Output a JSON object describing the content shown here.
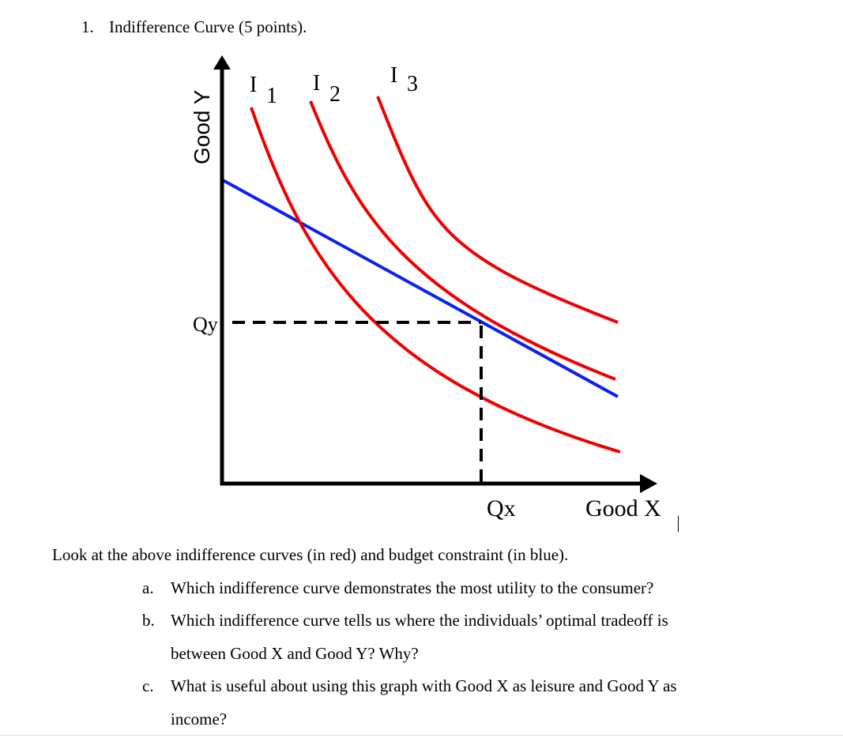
{
  "question": {
    "number": "1.",
    "title": "Indifference Curve (5 points)."
  },
  "figure": {
    "y_axis_label": "Good Y",
    "x_axis_label": "Good X",
    "qy_label": "Qy",
    "qx_label": "Qx",
    "curves": [
      {
        "letter": "I",
        "subscript": "1"
      },
      {
        "letter": "I",
        "subscript": "2"
      },
      {
        "letter": "I",
        "subscript": "3"
      }
    ],
    "colors": {
      "indifference_curve": "#ee0000",
      "budget_constraint": "#0a22ee",
      "axes": "#000000"
    }
  },
  "intro": "Look at the above indifference curves (in red) and budget constraint (in blue).",
  "subquestions": [
    {
      "label": "a.",
      "text": "Which indifference curve demonstrates the most utility to the consumer?"
    },
    {
      "label": "b.",
      "text": "Which indifference curve tells us where the individuals’ optimal tradeoff is",
      "continuation": "between Good X and Good Y? Why?"
    },
    {
      "label": "c.",
      "text": "What is useful about using this graph with Good X as leisure and Good Y as",
      "continuation": "income?"
    }
  ]
}
